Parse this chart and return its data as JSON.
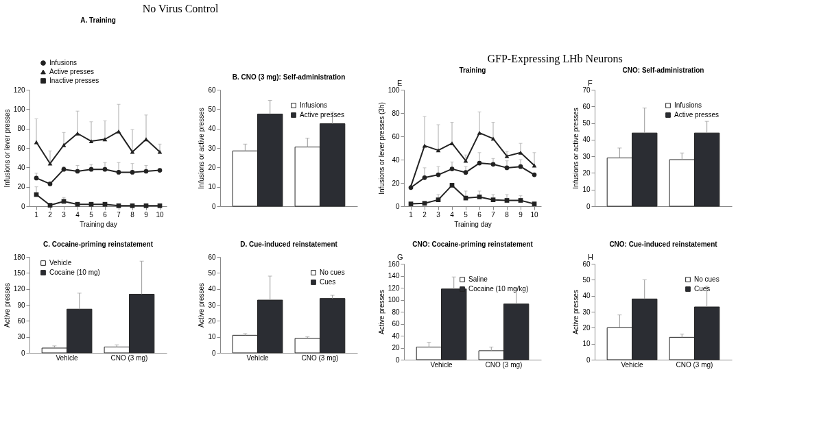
{
  "chart_data": [
    {
      "type": "line",
      "title": "A. Training",
      "annotations": [
        "No Virus Control"
      ],
      "xlabel": "Training day",
      "ylabel": "Infusions or lever presses",
      "categories": [
        "1",
        "2",
        "3",
        "4",
        "5",
        "6",
        "7",
        "8",
        "9",
        "10"
      ],
      "ylim": [
        0,
        120
      ],
      "yticks": [
        0,
        20,
        40,
        60,
        80,
        100,
        120
      ],
      "legend": "top left",
      "series": [
        {
          "name": "Infusions",
          "color": "#222222",
          "marker": "circle",
          "values": [
            29,
            23,
            38,
            36,
            38,
            38,
            35,
            35,
            36,
            37
          ],
          "errors": [
            [
              29,
              34
            ],
            [
              23,
              25
            ],
            [
              38,
              41
            ],
            [
              36,
              42
            ],
            [
              38,
              43
            ],
            [
              38,
              45
            ],
            [
              35,
              45
            ],
            [
              35,
              44
            ],
            [
              36,
              42
            ],
            null
          ]
        },
        {
          "name": "Active presses",
          "color": "#222222",
          "marker": "triangle",
          "values": [
            66,
            44,
            63,
            75,
            67,
            69,
            77,
            56,
            69,
            56
          ],
          "errors": [
            [
              66,
              90
            ],
            [
              44,
              57
            ],
            [
              63,
              76
            ],
            [
              75,
              98
            ],
            [
              67,
              87
            ],
            [
              69,
              88
            ],
            [
              77,
              105
            ],
            [
              56,
              79
            ],
            [
              69,
              94
            ],
            [
              56,
              64
            ]
          ]
        },
        {
          "name": "Inactive presses",
          "color": "#222222",
          "marker": "square",
          "values": [
            12,
            1,
            5,
            2,
            2,
            2,
            0.5,
            0.5,
            0.5,
            0.5
          ],
          "errors": [
            [
              12,
              20
            ],
            null,
            [
              5,
              9
            ],
            null,
            null,
            null,
            null,
            null,
            null,
            null
          ]
        }
      ]
    },
    {
      "type": "bar",
      "title": "B. CNO (3 mg): Self-administration",
      "ylabel": "Infusions or active presses",
      "categories": [
        null,
        null
      ],
      "ylim": [
        0,
        60
      ],
      "yticks": [
        0,
        10,
        20,
        30,
        40,
        50,
        60
      ],
      "legend": "top right",
      "series": [
        {
          "name": "Infusions",
          "color": "#ffffff",
          "values": [
            28.5,
            30.5
          ],
          "errors": [
            [
              28.5,
              32
            ],
            [
              30.5,
              35
            ]
          ]
        },
        {
          "name": "Active presses",
          "color": "#2b2d33",
          "values": [
            47.5,
            42.5
          ],
          "errors": [
            [
              47.5,
              54.5
            ],
            [
              42.5,
              48.5
            ]
          ]
        }
      ]
    },
    {
      "type": "bar",
      "title": "C. Cocaine-priming reinstatement",
      "ylabel": "Active presses",
      "categories": [
        "Vehicle",
        "CNO (3 mg)"
      ],
      "ylim": [
        0,
        180
      ],
      "yticks": [
        0,
        30,
        60,
        90,
        120,
        150,
        180
      ],
      "legend": "top left",
      "series": [
        {
          "name": "Vehicle",
          "color": "#ffffff",
          "values": [
            9,
            11
          ],
          "errors": [
            [
              9,
              13
            ],
            [
              11,
              15
            ]
          ]
        },
        {
          "name": "Cocaine (10 mg)",
          "color": "#2b2d33",
          "values": [
            82,
            110
          ],
          "errors": [
            [
              82,
              112
            ],
            [
              110,
              172
            ]
          ]
        }
      ]
    },
    {
      "type": "bar",
      "title": "D. Cue-induced reinstatement",
      "ylabel": "Active presses",
      "categories": [
        "Vehicle",
        "CNO (3 mg)"
      ],
      "ylim": [
        0,
        60
      ],
      "yticks": [
        0,
        10,
        20,
        30,
        40,
        50,
        60
      ],
      "legend": "top right",
      "series": [
        {
          "name": "No cues",
          "color": "#ffffff",
          "values": [
            11,
            9
          ],
          "errors": [
            [
              11,
              12
            ],
            [
              9,
              10
            ]
          ]
        },
        {
          "name": "Cues",
          "color": "#2b2d33",
          "values": [
            33,
            34
          ],
          "errors": [
            [
              33,
              48
            ],
            [
              34,
              36
            ]
          ]
        }
      ]
    },
    {
      "type": "line",
      "title": "Training",
      "annotations": [
        "GFP-Expressing LHb Neurons",
        "E"
      ],
      "xlabel": "Training day",
      "ylabel": "Infusions or lever presses (3h)",
      "categories": [
        "1",
        "2",
        "3",
        "4",
        "5",
        "6",
        "7",
        "8",
        "9",
        "10"
      ],
      "ylim": [
        0,
        100
      ],
      "yticks": [
        0,
        20,
        40,
        60,
        80,
        100
      ],
      "series": [
        {
          "color": "#222222",
          "marker": "circle",
          "values": [
            16,
            24.5,
            27,
            32,
            29,
            37,
            36,
            33,
            34,
            27
          ],
          "errors": [
            null,
            [
              24.5,
              33
            ],
            [
              27,
              34
            ],
            [
              32,
              38
            ],
            [
              29,
              34
            ],
            [
              37,
              46
            ],
            [
              36,
              41
            ],
            [
              33,
              39
            ],
            [
              34,
              40
            ],
            null
          ]
        },
        {
          "color": "#222222",
          "marker": "triangle",
          "values": [
            17,
            52,
            48,
            54,
            39,
            63,
            58,
            43,
            46,
            35
          ],
          "errors": [
            null,
            [
              52,
              77
            ],
            [
              48,
              70
            ],
            [
              54,
              72
            ],
            [
              39,
              44
            ],
            [
              63,
              81
            ],
            [
              58,
              72
            ],
            [
              43,
              47
            ],
            [
              46,
              54
            ],
            [
              35,
              46
            ]
          ]
        },
        {
          "color": "#222222",
          "marker": "square",
          "values": [
            2,
            2.5,
            5.5,
            18,
            7,
            8,
            5.5,
            5,
            5,
            2
          ],
          "errors": [
            null,
            null,
            [
              5.5,
              10
            ],
            null,
            [
              7,
              13
            ],
            [
              8,
              13
            ],
            [
              5.5,
              10
            ],
            [
              5,
              10
            ],
            [
              5,
              9
            ],
            null
          ]
        }
      ]
    },
    {
      "type": "bar",
      "title": "CNO: Self-administration",
      "annotations": [
        "F"
      ],
      "ylabel": "Infusions or active presses",
      "categories": [
        null,
        null
      ],
      "ylim": [
        0,
        70
      ],
      "yticks": [
        0,
        10,
        20,
        30,
        40,
        50,
        60,
        70
      ],
      "legend": "top right",
      "series": [
        {
          "name": "Infusions",
          "color": "#ffffff",
          "values": [
            29,
            28
          ],
          "errors": [
            [
              29,
              35
            ],
            [
              28,
              32
            ]
          ]
        },
        {
          "name": "Active presses",
          "color": "#2b2d33",
          "values": [
            44,
            44
          ],
          "errors": [
            [
              44,
              59
            ],
            [
              44,
              51
            ]
          ]
        }
      ]
    },
    {
      "type": "bar",
      "title": "CNO: Cocaine-priming reinstatement",
      "annotations": [
        "G"
      ],
      "ylabel": "Active presses",
      "categories": [
        "Vehicle",
        "CNO (3 mg)"
      ],
      "ylim": [
        0,
        160
      ],
      "yticks": [
        0,
        20,
        40,
        60,
        80,
        100,
        120,
        140,
        160
      ],
      "legend": "top right",
      "series": [
        {
          "name": "Saline",
          "color": "#ffffff",
          "values": [
            21,
            15
          ],
          "errors": [
            [
              21,
              29
            ],
            [
              15,
              21
            ]
          ]
        },
        {
          "name": "Cocaine (10 mg/kg)",
          "color": "#2b2d33",
          "values": [
            118,
            93
          ],
          "errors": [
            [
              118,
              138
            ],
            [
              93,
              119
            ]
          ]
        }
      ]
    },
    {
      "type": "bar",
      "title": "CNO: Cue-induced reinstatement",
      "annotations": [
        "H"
      ],
      "ylabel": "Active presses",
      "categories": [
        "Vehicle",
        "CNO (3 mg)"
      ],
      "ylim": [
        0,
        60
      ],
      "yticks": [
        0,
        10,
        20,
        30,
        40,
        50,
        60
      ],
      "legend": "top right",
      "series": [
        {
          "name": "No cues",
          "color": "#ffffff",
          "values": [
            20,
            14
          ],
          "errors": [
            [
              20,
              28
            ],
            [
              14,
              16
            ]
          ]
        },
        {
          "name": "Cues",
          "color": "#2b2d33",
          "values": [
            38,
            33
          ],
          "errors": [
            [
              38,
              50
            ],
            [
              33,
              46
            ]
          ]
        }
      ]
    }
  ]
}
